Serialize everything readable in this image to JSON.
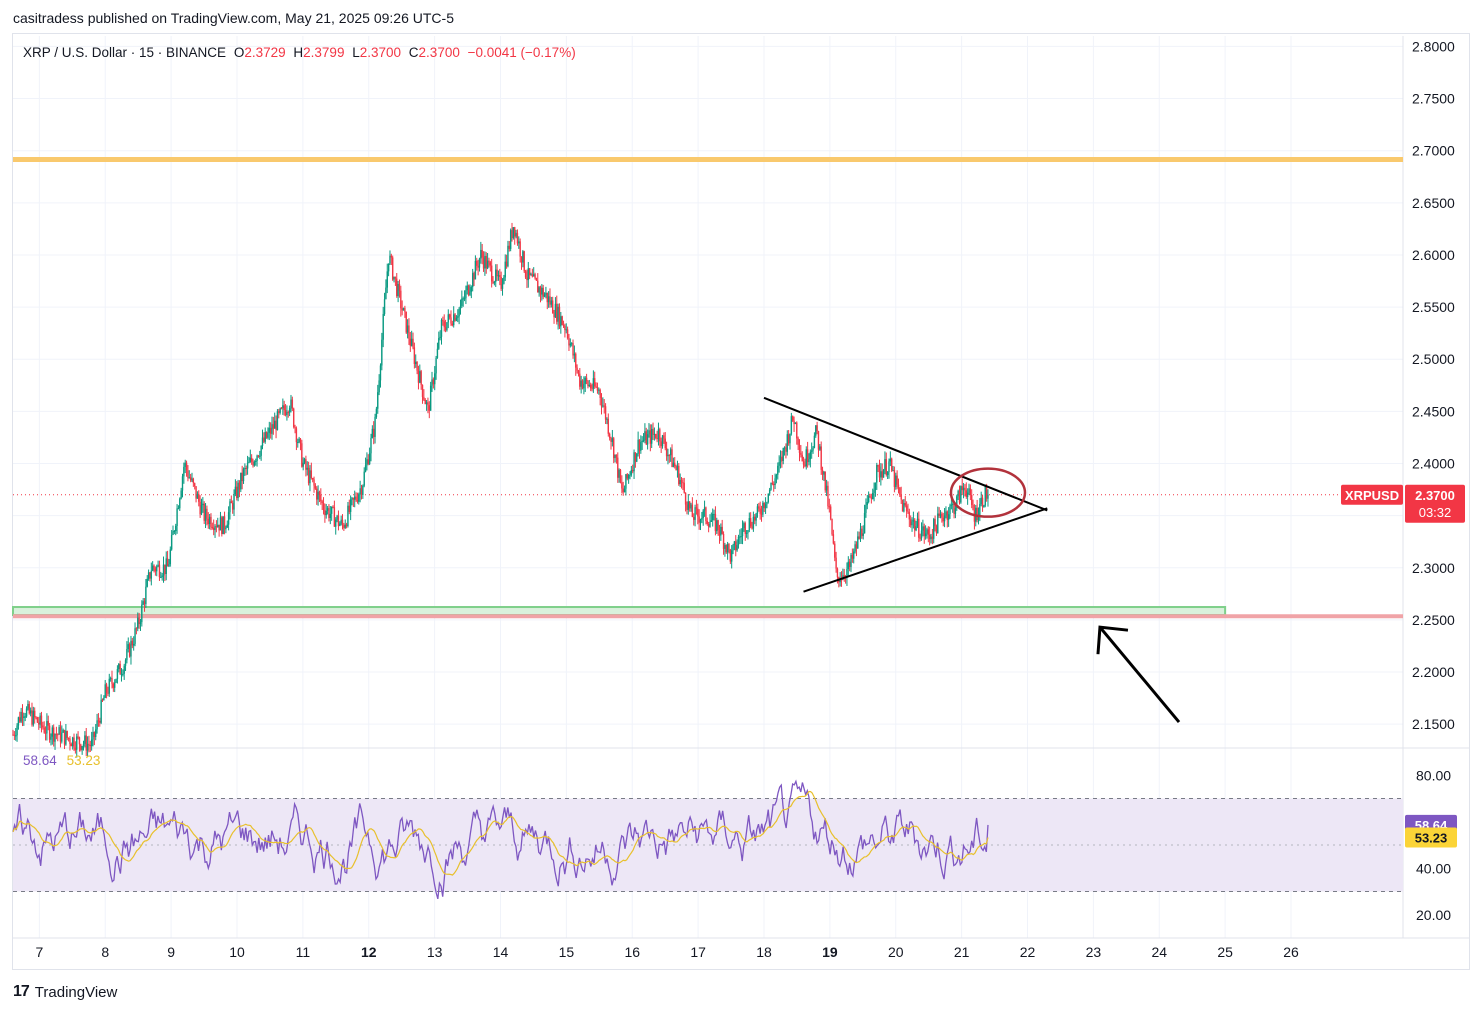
{
  "header": {
    "publisher": "casitradess published on TradingView.com, May 21, 2025 09:26 UTC-5"
  },
  "legend": {
    "symbol": "XRP / U.S. Dollar · 15 · BINANCE",
    "open_label": "O",
    "open": "2.3729",
    "high_label": "H",
    "high": "2.3799",
    "low_label": "L",
    "low": "2.3700",
    "close_label": "C",
    "close": "2.3700",
    "change": "−0.0041 (−0.17%)"
  },
  "rsi_legend": {
    "rsi": "58.64",
    "ma": "53.23"
  },
  "price_badge": {
    "ticker": "XRPUSD",
    "price": "2.3700",
    "countdown": "03:32"
  },
  "rsi_badges": {
    "rsi": "58.64",
    "ma": "53.23"
  },
  "footer": {
    "brand": "TradingView"
  },
  "colors": {
    "up": "#089981",
    "down": "#f23645",
    "resistance": "#f9c96d",
    "support_green": "#7fd08a",
    "support_red": "#f0a3a7",
    "rsi": "#7e57c2",
    "rsi_ma": "#e8c02c",
    "annotation": "#000000",
    "circle": "#b2323c",
    "rsi_band": "#ede7f6"
  },
  "chart_data": [
    {
      "type": "candlestick",
      "title": "XRP / U.S. Dollar · 15 · BINANCE",
      "x_tick_labels": [
        "7",
        "8",
        "9",
        "10",
        "11",
        "12",
        "13",
        "14",
        "15",
        "16",
        "17",
        "18",
        "19",
        "20",
        "21",
        "22",
        "23",
        "24",
        "25",
        "26"
      ],
      "bold_x_ticks": [
        "12",
        "19"
      ],
      "y_tick_labels": [
        "2.8000",
        "2.7500",
        "2.7000",
        "2.6500",
        "2.6000",
        "2.5500",
        "2.5000",
        "2.4500",
        "2.4000",
        "2.3500",
        "2.3000",
        "2.2500",
        "2.2000",
        "2.1500"
      ],
      "ylim": [
        2.13,
        2.81
      ],
      "xlim": [
        6.6,
        27.7
      ],
      "grid": true,
      "price_path_key_points": [
        {
          "x": 6.6,
          "y": 2.14
        },
        {
          "x": 6.75,
          "y": 2.165
        },
        {
          "x": 7.1,
          "y": 2.145
        },
        {
          "x": 7.5,
          "y": 2.135
        },
        {
          "x": 7.8,
          "y": 2.13
        },
        {
          "x": 8.0,
          "y": 2.18
        },
        {
          "x": 8.3,
          "y": 2.21
        },
        {
          "x": 8.5,
          "y": 2.245
        },
        {
          "x": 8.7,
          "y": 2.3
        },
        {
          "x": 8.95,
          "y": 2.3
        },
        {
          "x": 9.2,
          "y": 2.4
        },
        {
          "x": 9.5,
          "y": 2.35
        },
        {
          "x": 9.8,
          "y": 2.34
        },
        {
          "x": 10.1,
          "y": 2.39
        },
        {
          "x": 10.5,
          "y": 2.43
        },
        {
          "x": 10.8,
          "y": 2.46
        },
        {
          "x": 11.0,
          "y": 2.4
        },
        {
          "x": 11.3,
          "y": 2.36
        },
        {
          "x": 11.6,
          "y": 2.34
        },
        {
          "x": 11.9,
          "y": 2.38
        },
        {
          "x": 12.1,
          "y": 2.44
        },
        {
          "x": 12.3,
          "y": 2.6
        },
        {
          "x": 12.5,
          "y": 2.55
        },
        {
          "x": 12.7,
          "y": 2.5
        },
        {
          "x": 12.9,
          "y": 2.45
        },
        {
          "x": 13.1,
          "y": 2.53
        },
        {
          "x": 13.4,
          "y": 2.55
        },
        {
          "x": 13.7,
          "y": 2.6
        },
        {
          "x": 14.0,
          "y": 2.57
        },
        {
          "x": 14.2,
          "y": 2.63
        },
        {
          "x": 14.4,
          "y": 2.58
        },
        {
          "x": 14.7,
          "y": 2.56
        },
        {
          "x": 15.0,
          "y": 2.53
        },
        {
          "x": 15.2,
          "y": 2.48
        },
        {
          "x": 15.5,
          "y": 2.47
        },
        {
          "x": 15.7,
          "y": 2.42
        },
        {
          "x": 15.85,
          "y": 2.37
        },
        {
          "x": 16.1,
          "y": 2.42
        },
        {
          "x": 16.4,
          "y": 2.43
        },
        {
          "x": 16.7,
          "y": 2.39
        },
        {
          "x": 16.9,
          "y": 2.35
        },
        {
          "x": 17.1,
          "y": 2.35
        },
        {
          "x": 17.3,
          "y": 2.34
        },
        {
          "x": 17.5,
          "y": 2.31
        },
        {
          "x": 17.7,
          "y": 2.34
        },
        {
          "x": 17.9,
          "y": 2.35
        },
        {
          "x": 18.2,
          "y": 2.39
        },
        {
          "x": 18.45,
          "y": 2.445
        },
        {
          "x": 18.6,
          "y": 2.4
        },
        {
          "x": 18.8,
          "y": 2.43
        },
        {
          "x": 19.0,
          "y": 2.35
        },
        {
          "x": 19.1,
          "y": 2.29
        },
        {
          "x": 19.3,
          "y": 2.3
        },
        {
          "x": 19.5,
          "y": 2.34
        },
        {
          "x": 19.7,
          "y": 2.39
        },
        {
          "x": 19.9,
          "y": 2.4
        },
        {
          "x": 20.1,
          "y": 2.36
        },
        {
          "x": 20.3,
          "y": 2.34
        },
        {
          "x": 20.5,
          "y": 2.33
        },
        {
          "x": 20.7,
          "y": 2.35
        },
        {
          "x": 20.9,
          "y": 2.36
        },
        {
          "x": 21.05,
          "y": 2.38
        },
        {
          "x": 21.2,
          "y": 2.35
        },
        {
          "x": 21.35,
          "y": 2.37
        },
        {
          "x": 21.4,
          "y": 2.37
        }
      ],
      "last_price": 2.37,
      "horizontal_levels": [
        {
          "label": "resistance",
          "y": 2.6915,
          "color": "#f9c96d"
        },
        {
          "label": "support-green",
          "y": 2.2585,
          "x_end": 25.0,
          "color": "#7fd08a"
        },
        {
          "label": "support-red",
          "y": 2.2535,
          "color": "#f0a3a7"
        }
      ],
      "drawings": {
        "triangle_upper": [
          [
            18.0,
            2.463
          ],
          [
            22.3,
            2.355
          ]
        ],
        "triangle_lower": [
          [
            18.6,
            2.277
          ],
          [
            22.3,
            2.357
          ]
        ],
        "circle_center": [
          21.4,
          2.372
        ],
        "arrow_from": [
          24.3,
          2.152
        ],
        "arrow_to": [
          23.1,
          2.243
        ]
      }
    },
    {
      "type": "line",
      "title": "RSI",
      "y_tick_labels": [
        "80.00",
        "40.00",
        "20.00"
      ],
      "ylim": [
        10,
        90
      ],
      "bands": [
        30,
        70
      ],
      "series": [
        {
          "key": "rsi",
          "last": 58.64
        },
        {
          "key": "ma",
          "last": 53.23
        }
      ]
    }
  ]
}
